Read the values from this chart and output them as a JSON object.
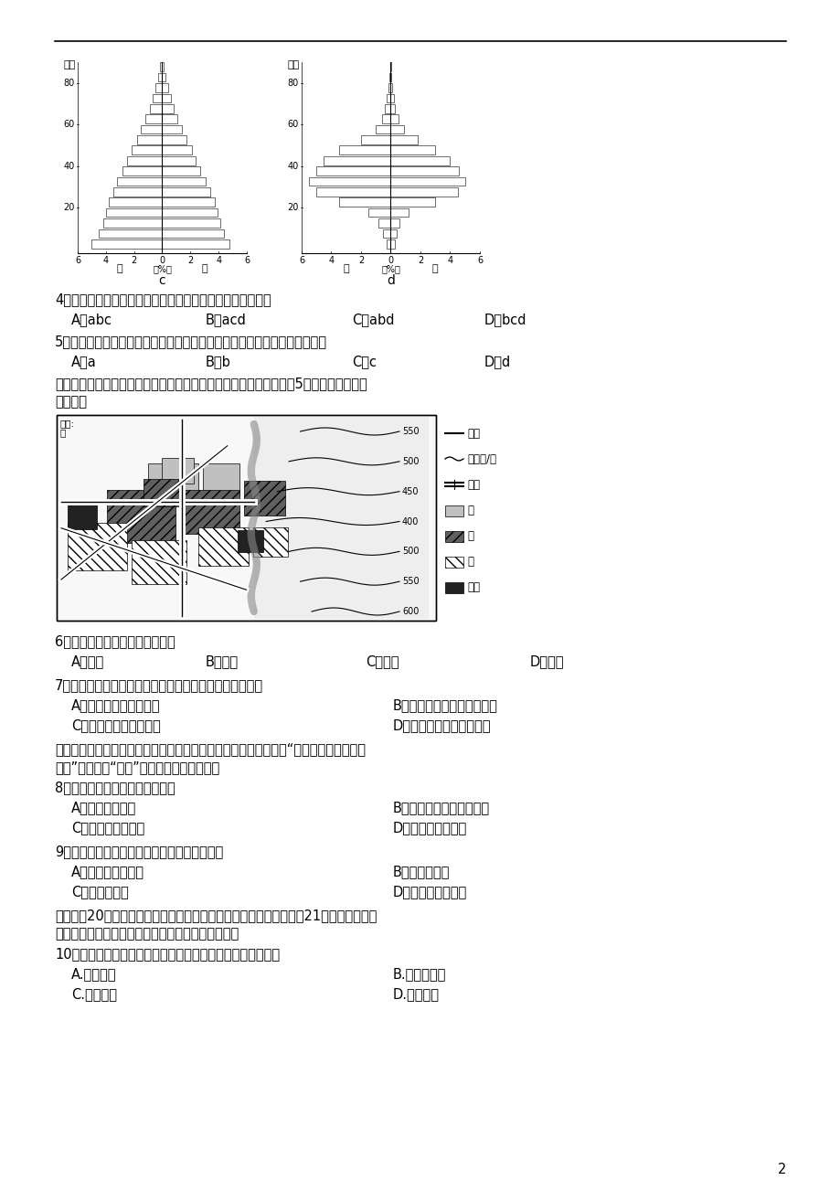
{
  "page_bg": "#ffffff",
  "page_num": "2",
  "pyramid_c_label": "c",
  "pyramid_d_label": "d",
  "q4": "4．人口的年龄、性别结构受人口迁移影响明显的一组城市是",
  "q4_a": "A．abc",
  "q4_b": "B．acd",
  "q4_c": "C．abd",
  "q4_d": "D．bcd",
  "q5": "5．据人口年龄、性别结构判断，文化教育在城市服务功能中占主要地位的是",
  "q5_a": "A．a",
  "q5_b": "B．b",
  "q5_c": "C．c",
  "q5_d": "D．d",
  "intro_line1": "下图为我国东部某城市土地利用类型分布示意图，该城市市区人口剠5万人。读图完成下",
  "intro_line2": "列各题。",
  "map_unit1": "单位:",
  "map_unit2": "米",
  "q6": "6．该城市形成的主导区位因素是",
  "q6_a": "A．河流",
  "q6_b": "B．气候",
  "q6_c": "C．文化",
  "q6_d": "D．公路",
  "q7": "7．甲、乙、丙为该城市主要功能区。丙功能区布局特点是",
  "q7_a": "A．上风上水，环境优美",
  "q7_b": "B．位于城镇边缘，地价较低",
  "q7_c": "C．靠近河流，水源优质",
  "q7_d": "D．公路过河点，交通便利",
  "ghost_line1": "随着城市化的发展，我国许多城市建设了新区、新城，但有些新城“白天鲜见人，晊上少",
  "ghost_line2": "亮灯”，被称为“鬼城”。据此完成下列各题。",
  "q8": "8．新城人口少的原因是（　　）",
  "q8_a": "A．交通拥堵严重",
  "q8_b": "B．人口迁往农村、小城镇",
  "q8_c": "C．相应产业不完善",
  "q8_d": "D．房地产供大于求",
  "q9": "9．新城的建设对水循环产生的影响有（　　）",
  "q9_a": "A．地表径流量增加",
  "q9_b": "B．下滲量增加",
  "q9_c": "C．蕉发量增加",
  "q9_d": "D．地下径流量增加",
  "ent_line1": "某企业于20世纪末在呼和浩特建立乳品加工厂，产品销往全国各地。21世纪初，该企业",
  "ent_line2": "又在北京、上海等地建立分厂。据此回答下列问题。",
  "q10": "10．吸引该企业在北京上海建分厂的主导区位因素是（　　）",
  "q10_a": "A.原料产地",
  "q10_b": "B.廉价劳动力",
  "q10_c": "C.消费市场",
  "q10_d": "D.先进技术",
  "contour_vals": [
    550,
    500,
    450,
    400,
    500,
    550,
    600
  ],
  "c_male": [
    5.0,
    4.5,
    4.2,
    4.0,
    3.8,
    3.5,
    3.2,
    2.8,
    2.5,
    2.2,
    1.8,
    1.5,
    1.2,
    0.9,
    0.7,
    0.5,
    0.3,
    0.15
  ],
  "c_female": [
    4.8,
    4.4,
    4.1,
    3.9,
    3.7,
    3.4,
    3.1,
    2.7,
    2.4,
    2.1,
    1.7,
    1.4,
    1.1,
    0.8,
    0.6,
    0.4,
    0.25,
    0.1
  ],
  "d_male": [
    0.3,
    0.5,
    0.8,
    1.5,
    3.5,
    5.0,
    5.5,
    5.0,
    4.5,
    3.5,
    2.0,
    1.0,
    0.6,
    0.4,
    0.25,
    0.15,
    0.08,
    0.04
  ],
  "d_female": [
    0.3,
    0.4,
    0.6,
    1.2,
    3.0,
    4.5,
    5.0,
    4.6,
    4.0,
    3.0,
    1.8,
    0.9,
    0.5,
    0.3,
    0.2,
    0.12,
    0.06,
    0.03
  ]
}
